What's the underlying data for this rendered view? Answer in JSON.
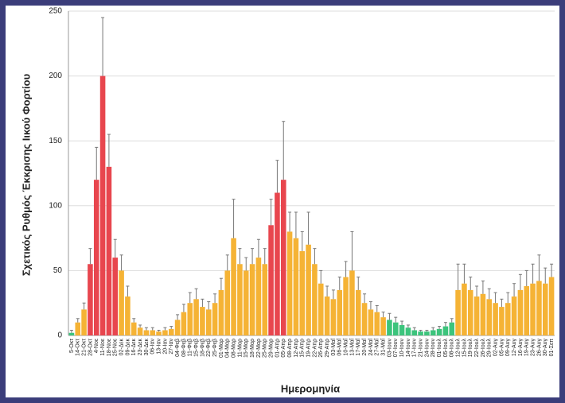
{
  "chart_data": {
    "type": "bar",
    "y_label": "Σχετικός Ρυθμός Έκκρισης Ιικού Φορτίου",
    "x_label": "Ημερομηνία",
    "categories": [
      "5-Οκτ",
      "14-Οκτ",
      "21-Οκτ",
      "28-Οκτ",
      "4-Νοε",
      "11-Νοε",
      "18-Νοε",
      "25-Νοε",
      "02-Δεκ",
      "09-Δεκ",
      "16-Δεκ",
      "23-Δεκ",
      "30-Δεκ",
      "06-Ιαν",
      "13-Ιαν",
      "20-Ιαν",
      "27-Ιαν",
      "04-Φεβ",
      "08-Φεβ",
      "11-Φεβ",
      "15-Φεβ",
      "18-Φεβ",
      "22-Φεβ",
      "25-Φεβ",
      "01-Μαρ",
      "04-Μαρ",
      "08-Μαρ",
      "11-Μαρ",
      "15-Μαρ",
      "18-Μαρ",
      "22-Μαρ",
      "25-Μαρ",
      "29-Μαρ",
      "01-Απρ",
      "05-Απρ",
      "08-Απρ",
      "12-Απρ",
      "15-Απρ",
      "19-Απρ",
      "22-Απρ",
      "26-Απρ",
      "29-Απρ",
      "03-Μαΐ",
      "06-Μαΐ",
      "10-Μαΐ",
      "13-Μαΐ",
      "17-Μαΐ",
      "20-Μαΐ",
      "24-Μαΐ",
      "27-Μαΐ",
      "31-Μαΐ",
      "03-Ιουν",
      "07-Ιουν",
      "10-Ιουν",
      "14-Ιουν",
      "17-Ιουν",
      "21-Ιουν",
      "24-Ιουν",
      "28-Ιουν",
      "01-Ιουλ",
      "05-Ιουλ",
      "08-Ιουλ",
      "12-Ιουλ",
      "15-Ιουλ",
      "19-Ιουλ",
      "22-Ιουλ",
      "26-Ιουλ",
      "29-Ιουλ",
      "02-Αυγ",
      "05-Αυγ",
      "09-Αυγ",
      "12-Αυγ",
      "16-Αυγ",
      "19-Αυγ",
      "23-Αυγ",
      "26-Αυγ",
      "30-Αυγ",
      "01-Σεπ"
    ],
    "values": [
      2,
      10,
      20,
      55,
      120,
      200,
      130,
      60,
      50,
      30,
      10,
      6,
      4,
      4,
      3,
      4,
      5,
      12,
      18,
      25,
      28,
      22,
      20,
      25,
      35,
      50,
      75,
      55,
      50,
      55,
      60,
      55,
      85,
      110,
      120,
      80,
      75,
      65,
      70,
      55,
      40,
      30,
      28,
      35,
      45,
      50,
      35,
      25,
      20,
      18,
      14,
      12,
      10,
      8,
      6,
      4,
      3,
      3,
      4,
      5,
      7,
      10,
      35,
      40,
      35,
      30,
      32,
      28,
      25,
      22,
      25,
      30,
      35,
      38,
      40,
      42,
      40,
      45
    ],
    "errors": [
      2,
      3,
      5,
      12,
      25,
      45,
      25,
      14,
      12,
      8,
      3,
      2,
      2,
      2,
      1,
      2,
      2,
      4,
      6,
      8,
      8,
      6,
      6,
      7,
      9,
      12,
      30,
      12,
      10,
      12,
      14,
      12,
      20,
      25,
      45,
      15,
      20,
      15,
      25,
      12,
      10,
      8,
      7,
      10,
      12,
      30,
      10,
      7,
      6,
      5,
      4,
      5,
      4,
      3,
      2,
      2,
      1,
      1,
      2,
      2,
      3,
      3,
      20,
      15,
      10,
      8,
      10,
      8,
      8,
      6,
      8,
      10,
      12,
      12,
      15,
      20,
      12,
      10
    ],
    "colors": [
      "#3cc47c",
      "#f5b335",
      "#f5b335",
      "#e8464e",
      "#e8464e",
      "#e8464e",
      "#e8464e",
      "#e8464e",
      "#f5b335",
      "#f5b335",
      "#f5b335",
      "#f5b335",
      "#f5b335",
      "#f5b335",
      "#f5b335",
      "#f5b335",
      "#f5b335",
      "#f5b335",
      "#f5b335",
      "#f5b335",
      "#f5b335",
      "#f5b335",
      "#f5b335",
      "#f5b335",
      "#f5b335",
      "#f5b335",
      "#f5b335",
      "#f5b335",
      "#f5b335",
      "#f5b335",
      "#f5b335",
      "#f5b335",
      "#e8464e",
      "#e8464e",
      "#e8464e",
      "#f5b335",
      "#f5b335",
      "#f5b335",
      "#f5b335",
      "#f5b335",
      "#f5b335",
      "#f5b335",
      "#f5b335",
      "#f5b335",
      "#f5b335",
      "#f5b335",
      "#f5b335",
      "#f5b335",
      "#f5b335",
      "#f5b335",
      "#f5b335",
      "#3cc47c",
      "#3cc47c",
      "#3cc47c",
      "#3cc47c",
      "#3cc47c",
      "#3cc47c",
      "#3cc47c",
      "#3cc47c",
      "#3cc47c",
      "#3cc47c",
      "#3cc47c",
      "#f5b335",
      "#f5b335",
      "#f5b335",
      "#f5b335",
      "#f5b335",
      "#f5b335",
      "#f5b335",
      "#f5b335",
      "#f5b335",
      "#f5b335",
      "#f5b335",
      "#f5b335",
      "#f5b335",
      "#f5b335",
      "#f5b335",
      "#f5b335"
    ],
    "error_color": "#777777",
    "ylim": [
      0,
      250
    ],
    "yticks": [
      0,
      50,
      100,
      150,
      200,
      250
    ],
    "grid": true
  }
}
